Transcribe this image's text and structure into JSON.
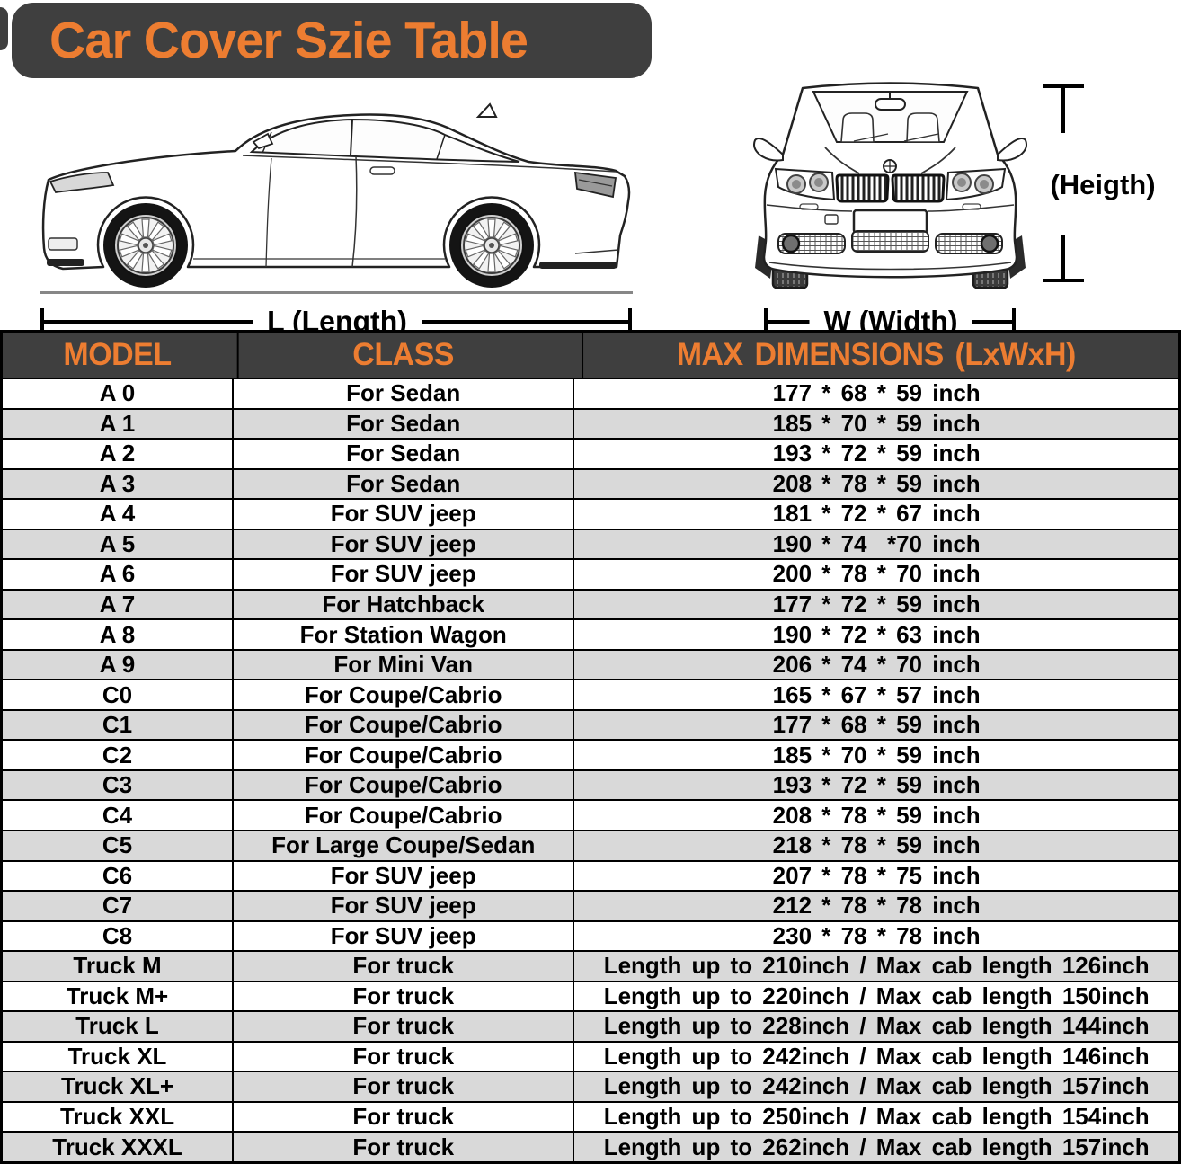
{
  "title": "Car Cover Szie Table",
  "diagram": {
    "length_label": "L (Length)",
    "width_label": "W (Width)",
    "height_label": "(Heigth)"
  },
  "table": {
    "headers": [
      "MODEL",
      "CLASS",
      "MAX DIMENSIONS (LxWxH)"
    ],
    "rows": [
      [
        "A 0",
        "For Sedan",
        "177 * 68 * 59 inch"
      ],
      [
        "A 1",
        "For Sedan",
        "185 * 70 * 59 inch"
      ],
      [
        "A 2",
        "For Sedan",
        "193 * 72 * 59 inch"
      ],
      [
        "A 3",
        "For Sedan",
        "208 * 78 * 59 inch"
      ],
      [
        "A 4",
        "For SUV jeep",
        "181 * 72 * 67 inch"
      ],
      [
        "A 5",
        "For SUV jeep",
        "190 * 74  *70 inch"
      ],
      [
        "A 6",
        "For SUV jeep",
        "200 * 78 * 70 inch"
      ],
      [
        "A 7",
        "For Hatchback",
        "177 * 72 * 59 inch"
      ],
      [
        "A 8",
        "For Station Wagon",
        "190 * 72 * 63 inch"
      ],
      [
        "A 9",
        "For Mini Van",
        "206 * 74 * 70 inch"
      ],
      [
        "C0",
        "For Coupe/Cabrio",
        "165 * 67 * 57 inch"
      ],
      [
        "C1",
        "For Coupe/Cabrio",
        "177 * 68 * 59 inch"
      ],
      [
        "C2",
        "For Coupe/Cabrio",
        "185 * 70 * 59 inch"
      ],
      [
        "C3",
        "For Coupe/Cabrio",
        "193 * 72 * 59 inch"
      ],
      [
        "C4",
        "For Coupe/Cabrio",
        "208 * 78 * 59 inch"
      ],
      [
        "C5",
        "For Large Coupe/Sedan",
        "218 * 78 * 59 inch"
      ],
      [
        "C6",
        "For SUV jeep",
        "207 * 78 * 75 inch"
      ],
      [
        "C7",
        "For SUV jeep",
        "212 * 78 * 78 inch"
      ],
      [
        "C8",
        "For SUV jeep",
        "230 * 78 * 78 inch"
      ],
      [
        "Truck M",
        "For truck",
        "Length up to 210inch / Max cab length 126inch"
      ],
      [
        "Truck M+",
        "For truck",
        "Length up to 220inch / Max cab length 150inch"
      ],
      [
        "Truck L",
        "For truck",
        "Length up to 228inch / Max cab length 144inch"
      ],
      [
        "Truck XL",
        "For truck",
        "Length up to 242inch / Max cab length 146inch"
      ],
      [
        "Truck XL+",
        "For truck",
        "Length up to 242inch / Max cab length 157inch"
      ],
      [
        "Truck XXL",
        "For truck",
        "Length up to 250inch / Max cab length 154inch"
      ],
      [
        "Truck XXXL",
        "For truck",
        "Length up to 262inch / Max cab length 157inch"
      ]
    ]
  },
  "colors": {
    "accent_orange": "#ED7D31",
    "banner_dark": "#3F3F3F",
    "row_alt_gray": "#D9D9D9",
    "border_black": "#000000"
  }
}
